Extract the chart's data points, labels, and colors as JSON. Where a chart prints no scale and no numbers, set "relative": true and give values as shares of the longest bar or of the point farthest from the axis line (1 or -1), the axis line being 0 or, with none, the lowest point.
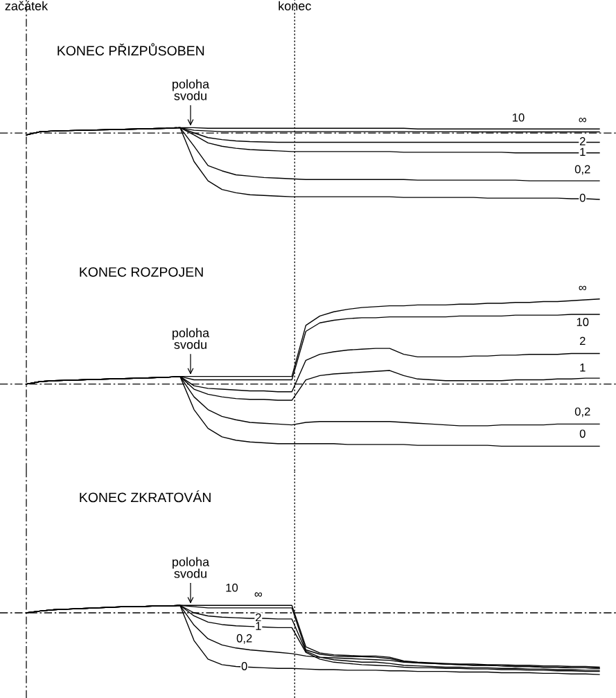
{
  "chart_data": [
    {
      "type": "line",
      "title": "KONEC PŘIZPŮSOBEN",
      "relative": true,
      "legend": false,
      "marker": "none",
      "line_style": "solid",
      "categories": [
        null,
        null,
        null,
        null,
        null,
        null,
        null,
        null,
        null,
        null,
        null,
        null,
        null,
        null,
        null,
        null,
        null,
        null,
        null,
        null,
        null,
        null,
        null,
        null,
        null,
        null,
        null,
        null,
        null,
        null,
        null,
        null,
        null,
        null,
        null,
        null,
        null,
        null,
        null,
        null,
        null,
        null
      ],
      "annotations": [
        "začátek",
        "konec",
        "poloha svodu"
      ],
      "ref_lines": [
        {
          "axis": "y",
          "value": 0,
          "label": null,
          "line_style": "dashed",
          "color": "#000000"
        }
      ],
      "series": [
        {
          "name": "∞",
          "color": "#000000",
          "values": [
            -0.03,
            0.02,
            0.03,
            0.035,
            0.04,
            0.045,
            0.05,
            0.055,
            0.06,
            0.065,
            0.07,
            0.08,
            0.08,
            0.07,
            0.07,
            0.07,
            0.07,
            0.07,
            0.07,
            0.07,
            0.07,
            0.07,
            0.07,
            0.07,
            0.07,
            0.07,
            0.07,
            0.07,
            0.06,
            0.06,
            0.06,
            0.06,
            0.06,
            0.06,
            0.06,
            0.06,
            0.06,
            0.06,
            0.06,
            0.06,
            0.06,
            0.06
          ]
        },
        {
          "name": "10",
          "color": "#000000",
          "values": [
            -0.03,
            0.02,
            0.03,
            0.035,
            0.04,
            0.045,
            0.05,
            0.055,
            0.06,
            0.065,
            0.07,
            0.08,
            0.04,
            0.03,
            0.02,
            0.02,
            0.02,
            0.02,
            0.02,
            0.02,
            0.02,
            0.02,
            0.02,
            0.02,
            0.02,
            0.02,
            0.02,
            0.02,
            0.02,
            0.02,
            0.02,
            0.02,
            0.015,
            0.015,
            0.015,
            0.015,
            0.015,
            0.015,
            0.015,
            0.015,
            0.015,
            0.015
          ]
        },
        {
          "name": "2",
          "color": "#000000",
          "values": [
            -0.03,
            0.02,
            0.03,
            0.035,
            0.04,
            0.045,
            0.05,
            0.055,
            0.06,
            0.065,
            0.07,
            0.08,
            0.0,
            -0.07,
            -0.1,
            -0.12,
            -0.13,
            -0.135,
            -0.14,
            -0.14,
            -0.14,
            -0.14,
            -0.14,
            -0.14,
            -0.14,
            -0.14,
            -0.14,
            -0.14,
            -0.14,
            -0.14,
            -0.14,
            -0.14,
            -0.14,
            -0.14,
            -0.14,
            -0.14,
            -0.14,
            -0.14,
            -0.14,
            -0.14,
            -0.14,
            -0.14
          ]
        },
        {
          "name": "1",
          "color": "#000000",
          "values": [
            -0.03,
            0.02,
            0.03,
            0.035,
            0.04,
            0.045,
            0.05,
            0.055,
            0.06,
            0.065,
            0.07,
            0.08,
            -0.03,
            -0.15,
            -0.2,
            -0.23,
            -0.25,
            -0.26,
            -0.27,
            -0.28,
            -0.28,
            -0.28,
            -0.28,
            -0.28,
            -0.28,
            -0.28,
            -0.28,
            -0.29,
            -0.29,
            -0.29,
            -0.29,
            -0.29,
            -0.29,
            -0.29,
            -0.29,
            -0.3,
            -0.3,
            -0.3,
            -0.3,
            -0.3,
            -0.3,
            -0.3
          ]
        },
        {
          "name": "0,2",
          "color": "#000000",
          "values": [
            -0.03,
            0.02,
            0.03,
            0.035,
            0.04,
            0.045,
            0.05,
            0.055,
            0.06,
            0.065,
            0.07,
            0.08,
            -0.2,
            -0.49,
            -0.57,
            -0.63,
            -0.65,
            -0.67,
            -0.68,
            -0.69,
            -0.7,
            -0.7,
            -0.7,
            -0.7,
            -0.7,
            -0.7,
            -0.7,
            -0.7,
            -0.71,
            -0.71,
            -0.71,
            -0.71,
            -0.71,
            -0.71,
            -0.71,
            -0.71,
            -0.72,
            -0.72,
            -0.72,
            -0.72,
            -0.72,
            -0.72
          ]
        },
        {
          "name": "0",
          "color": "#000000",
          "values": [
            -0.03,
            0.02,
            0.03,
            0.035,
            0.04,
            0.045,
            0.05,
            0.055,
            0.06,
            0.065,
            0.07,
            0.08,
            -0.43,
            -0.72,
            -0.85,
            -0.9,
            -0.93,
            -0.94,
            -0.95,
            -0.96,
            -0.96,
            -0.96,
            -0.96,
            -0.96,
            -0.96,
            -0.96,
            -0.96,
            -0.97,
            -0.97,
            -0.97,
            -0.97,
            -0.97,
            -0.97,
            -0.98,
            -0.98,
            -0.98,
            -0.98,
            -0.98,
            -0.98,
            -0.99,
            -0.99,
            -1.0
          ]
        }
      ]
    },
    {
      "type": "line",
      "title": "KONEC ROZPOJEN",
      "relative": true,
      "legend": false,
      "marker": "none",
      "line_style": "solid",
      "categories": [
        null,
        null,
        null,
        null,
        null,
        null,
        null,
        null,
        null,
        null,
        null,
        null,
        null,
        null,
        null,
        null,
        null,
        null,
        null,
        null,
        null,
        null,
        null,
        null,
        null,
        null,
        null,
        null,
        null,
        null,
        null,
        null,
        null,
        null,
        null,
        null,
        null,
        null,
        null,
        null,
        null,
        null
      ],
      "annotations": [
        "poloha svodu"
      ],
      "ref_lines": [
        {
          "axis": "y",
          "value": 0,
          "label": null,
          "line_style": "dashed",
          "color": "#000000"
        }
      ],
      "series": [
        {
          "name": "∞",
          "color": "#000000",
          "values": [
            0,
            0.03,
            0.04,
            0.045,
            0.05,
            0.055,
            0.06,
            0.065,
            0.07,
            0.075,
            0.08,
            0.09,
            0.09,
            0.09,
            0.09,
            0.09,
            0.09,
            0.09,
            0.09,
            0.09,
            0.69,
            0.8,
            0.85,
            0.88,
            0.9,
            0.91,
            0.92,
            0.92,
            0.93,
            0.93,
            0.93,
            0.94,
            0.94,
            0.95,
            0.95,
            0.96,
            0.96,
            0.97,
            0.97,
            0.98,
            0.99,
            1.0
          ]
        },
        {
          "name": "10",
          "color": "#000000",
          "values": [
            0,
            0.03,
            0.04,
            0.045,
            0.05,
            0.055,
            0.06,
            0.065,
            0.07,
            0.075,
            0.08,
            0.09,
            0.05,
            0.05,
            0.05,
            0.05,
            0.05,
            0.05,
            0.05,
            0.05,
            0.62,
            0.72,
            0.75,
            0.77,
            0.78,
            0.78,
            0.79,
            0.79,
            0.79,
            0.79,
            0.79,
            0.8,
            0.8,
            0.8,
            0.8,
            0.81,
            0.81,
            0.81,
            0.81,
            0.82,
            0.82,
            0.82
          ]
        },
        {
          "name": "2",
          "color": "#000000",
          "values": [
            0,
            0.03,
            0.04,
            0.045,
            0.05,
            0.055,
            0.06,
            0.065,
            0.07,
            0.075,
            0.08,
            0.09,
            -0.02,
            -0.05,
            -0.06,
            -0.07,
            -0.08,
            -0.08,
            -0.09,
            -0.09,
            0.28,
            0.35,
            0.38,
            0.4,
            0.41,
            0.42,
            0.42,
            0.35,
            0.32,
            0.32,
            0.32,
            0.32,
            0.33,
            0.33,
            0.34,
            0.34,
            0.35,
            0.35,
            0.35,
            0.36,
            0.36,
            0.36
          ]
        },
        {
          "name": "1",
          "color": "#000000",
          "values": [
            0,
            0.03,
            0.04,
            0.045,
            0.05,
            0.055,
            0.06,
            0.065,
            0.07,
            0.075,
            0.08,
            0.09,
            -0.06,
            -0.12,
            -0.15,
            -0.17,
            -0.18,
            -0.18,
            -0.19,
            -0.19,
            0.05,
            0.1,
            0.12,
            0.13,
            0.14,
            0.15,
            0.16,
            0.1,
            0.06,
            0.05,
            0.04,
            0.04,
            0.04,
            0.04,
            0.04,
            0.05,
            0.05,
            0.05,
            0.06,
            0.06,
            0.07,
            0.07
          ]
        },
        {
          "name": "0,2",
          "color": "#000000",
          "values": [
            0,
            0.03,
            0.04,
            0.045,
            0.05,
            0.055,
            0.06,
            0.065,
            0.07,
            0.075,
            0.08,
            0.09,
            -0.15,
            -0.3,
            -0.38,
            -0.42,
            -0.45,
            -0.46,
            -0.47,
            -0.48,
            -0.45,
            -0.44,
            -0.44,
            -0.44,
            -0.44,
            -0.44,
            -0.44,
            -0.45,
            -0.46,
            -0.47,
            -0.48,
            -0.49,
            -0.49,
            -0.49,
            -0.48,
            -0.48,
            -0.48,
            -0.48,
            -0.47,
            -0.47,
            -0.47,
            -0.47
          ]
        },
        {
          "name": "0",
          "color": "#000000",
          "values": [
            0,
            0.03,
            0.04,
            0.045,
            0.05,
            0.055,
            0.06,
            0.065,
            0.07,
            0.075,
            0.08,
            0.09,
            -0.3,
            -0.52,
            -0.62,
            -0.66,
            -0.68,
            -0.69,
            -0.7,
            -0.7,
            -0.7,
            -0.7,
            -0.7,
            -0.71,
            -0.71,
            -0.71,
            -0.71,
            -0.71,
            -0.72,
            -0.72,
            -0.72,
            -0.72,
            -0.72,
            -0.72,
            -0.73,
            -0.73,
            -0.73,
            -0.73,
            -0.73,
            -0.73,
            -0.73,
            -0.73
          ]
        }
      ]
    },
    {
      "type": "line",
      "title": "KONEC ZKRATOVÁN",
      "relative": true,
      "legend": false,
      "marker": "none",
      "line_style": "solid",
      "categories": [
        null,
        null,
        null,
        null,
        null,
        null,
        null,
        null,
        null,
        null,
        null,
        null,
        null,
        null,
        null,
        null,
        null,
        null,
        null,
        null,
        null,
        null,
        null,
        null,
        null,
        null,
        null,
        null,
        null,
        null,
        null,
        null,
        null,
        null,
        null,
        null,
        null,
        null,
        null,
        null,
        null,
        null
      ],
      "annotations": [
        "poloha svodu"
      ],
      "ref_lines": [
        {
          "axis": "y",
          "value": 0,
          "label": null,
          "line_style": "dashed",
          "color": "#000000"
        }
      ],
      "series": [
        {
          "name": "∞",
          "color": "#000000",
          "values": [
            0,
            0.03,
            0.05,
            0.06,
            0.07,
            0.08,
            0.09,
            0.1,
            0.1,
            0.11,
            0.11,
            0.12,
            0.12,
            0.12,
            0.12,
            0.12,
            0.12,
            0.12,
            0.12,
            0.12,
            -0.55,
            -0.65,
            -0.68,
            -0.69,
            -0.7,
            -0.7,
            -0.72,
            -0.78,
            -0.8,
            -0.81,
            -0.82,
            -0.83,
            -0.83,
            -0.84,
            -0.84,
            -0.85,
            -0.85,
            -0.86,
            -0.86,
            -0.87,
            -0.87,
            -0.88
          ]
        },
        {
          "name": "10",
          "color": "#000000",
          "values": [
            0,
            0.03,
            0.05,
            0.06,
            0.07,
            0.08,
            0.09,
            0.1,
            0.1,
            0.11,
            0.11,
            0.12,
            0.1,
            0.08,
            0.08,
            0.08,
            0.08,
            0.08,
            0.08,
            0.08,
            -0.6,
            -0.67,
            -0.7,
            -0.71,
            -0.71,
            -0.72,
            -0.74,
            -0.79,
            -0.81,
            -0.82,
            -0.83,
            -0.84,
            -0.85,
            -0.85,
            -0.86,
            -0.87,
            -0.87,
            -0.88,
            -0.88,
            -0.89,
            -0.89,
            -0.9
          ]
        },
        {
          "name": "2",
          "color": "#000000",
          "values": [
            0,
            0.03,
            0.05,
            0.06,
            0.07,
            0.08,
            0.09,
            0.1,
            0.1,
            0.11,
            0.11,
            0.12,
            0.0,
            -0.05,
            -0.07,
            -0.08,
            -0.09,
            -0.09,
            -0.1,
            -0.1,
            -0.62,
            -0.72,
            -0.76,
            -0.78,
            -0.8,
            -0.8,
            -0.82,
            -0.85,
            -0.86,
            -0.87,
            -0.88,
            -0.88,
            -0.89,
            -0.89,
            -0.9,
            -0.9,
            -0.91,
            -0.91,
            -0.92,
            -0.92,
            -0.93,
            -0.93
          ]
        },
        {
          "name": "1",
          "color": "#000000",
          "values": [
            0,
            0.03,
            0.05,
            0.06,
            0.07,
            0.08,
            0.09,
            0.1,
            0.1,
            0.11,
            0.11,
            0.12,
            -0.05,
            -0.15,
            -0.19,
            -0.21,
            -0.22,
            -0.23,
            -0.24,
            -0.24,
            -0.64,
            -0.75,
            -0.8,
            -0.82,
            -0.84,
            -0.85,
            -0.86,
            -0.88,
            -0.89,
            -0.89,
            -0.9,
            -0.9,
            -0.91,
            -0.91,
            -0.92,
            -0.92,
            -0.93,
            -0.93,
            -0.94,
            -0.94,
            -0.95,
            -0.95
          ]
        },
        {
          "name": "0,2",
          "color": "#000000",
          "values": [
            0,
            0.03,
            0.05,
            0.06,
            0.07,
            0.08,
            0.09,
            0.1,
            0.1,
            0.11,
            0.11,
            0.12,
            -0.2,
            -0.42,
            -0.52,
            -0.57,
            -0.6,
            -0.62,
            -0.64,
            -0.66,
            -0.7,
            -0.72,
            -0.73,
            -0.74,
            -0.75,
            -0.76,
            -0.77,
            -0.8,
            -0.81,
            -0.82,
            -0.83,
            -0.84,
            -0.85,
            -0.85,
            -0.86,
            -0.87,
            -0.87,
            -0.88,
            -0.88,
            -0.89,
            -0.89,
            -0.9
          ]
        },
        {
          "name": "0",
          "color": "#000000",
          "values": [
            0,
            0.03,
            0.05,
            0.06,
            0.07,
            0.08,
            0.09,
            0.1,
            0.1,
            0.11,
            0.11,
            0.12,
            -0.45,
            -0.75,
            -0.84,
            -0.87,
            -0.88,
            -0.89,
            -0.9,
            -0.9,
            -0.91,
            -0.92,
            -0.92,
            -0.93,
            -0.93,
            -0.93,
            -0.94,
            -0.94,
            -0.95,
            -0.95,
            -0.95,
            -0.96,
            -0.96,
            -0.96,
            -0.97,
            -0.97,
            -0.97,
            -0.98,
            -0.98,
            -0.99,
            -0.99,
            -1.0
          ]
        }
      ]
    }
  ]
}
